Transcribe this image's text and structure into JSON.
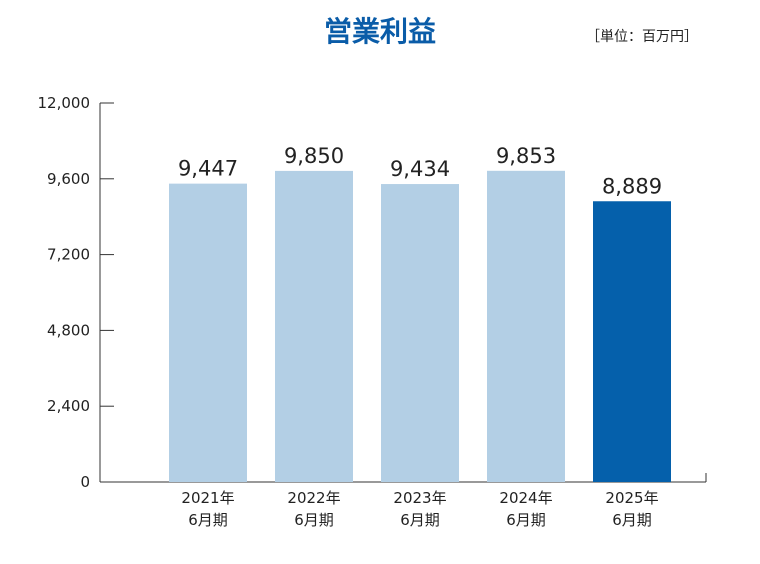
{
  "header": {
    "title": "営業利益",
    "unit": "［単位：百万円］"
  },
  "colors": {
    "title": "#0a5ca8",
    "bar_past": "#b3cfe5",
    "bar_current": "#0560ab",
    "axis": "#333333"
  },
  "chart_data": {
    "type": "bar",
    "title": "営業利益",
    "unit": "［単位：百万円］",
    "categories": [
      [
        "2021年",
        "6月期"
      ],
      [
        "2022年",
        "6月期"
      ],
      [
        "2023年",
        "6月期"
      ],
      [
        "2024年",
        "6月期"
      ],
      [
        "2025年",
        "6月期"
      ]
    ],
    "values": [
      9447,
      9850,
      9434,
      9853,
      8889
    ],
    "value_labels": [
      "9,447",
      "9,850",
      "9,434",
      "9,853",
      "8,889"
    ],
    "highlight_index": 4,
    "ylim": [
      0,
      12000
    ],
    "yticks": [
      0,
      2400,
      4800,
      7200,
      9600,
      12000
    ],
    "ytick_labels": [
      "0",
      "2,400",
      "4,800",
      "7,200",
      "9,600",
      "12,000"
    ],
    "grid": false,
    "legend": "none"
  }
}
